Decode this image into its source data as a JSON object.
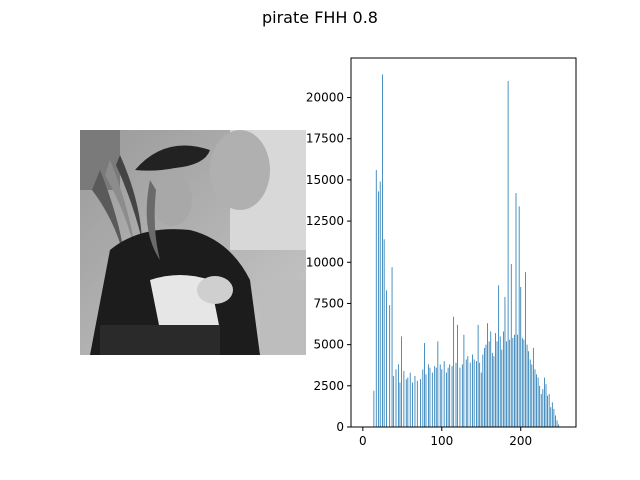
{
  "figure": {
    "suptitle": "pirate FHH 0.8"
  },
  "image_panel": {
    "description_icon": "grayscale-photo-icon"
  },
  "chart_data": {
    "type": "bar",
    "title": "",
    "xlabel": "",
    "ylabel": "",
    "xlim": [
      -15,
      270
    ],
    "ylim": [
      0,
      22400
    ],
    "xticks": [
      0,
      100,
      200
    ],
    "yticks": [
      0,
      2500,
      5000,
      7500,
      10000,
      12500,
      15000,
      17500,
      20000
    ],
    "bar_color": "#1f77b4",
    "bins": [
      [
        14,
        2200
      ],
      [
        17,
        15600
      ],
      [
        20,
        14300
      ],
      [
        22,
        14900
      ],
      [
        25,
        21400
      ],
      [
        27,
        11400
      ],
      [
        30,
        8300
      ],
      [
        34,
        7400
      ],
      [
        37,
        9700
      ],
      [
        39,
        3100
      ],
      [
        42,
        3500
      ],
      [
        45,
        3800
      ],
      [
        47,
        2700
      ],
      [
        49,
        5500
      ],
      [
        52,
        3400
      ],
      [
        55,
        2900
      ],
      [
        57,
        3000
      ],
      [
        60,
        3300
      ],
      [
        63,
        2700
      ],
      [
        66,
        3100
      ],
      [
        69,
        2800
      ],
      [
        73,
        2900
      ],
      [
        76,
        3500
      ],
      [
        78,
        5100
      ],
      [
        80,
        3200
      ],
      [
        83,
        3800
      ],
      [
        85,
        3600
      ],
      [
        88,
        3300
      ],
      [
        91,
        3700
      ],
      [
        93,
        3600
      ],
      [
        95,
        5200
      ],
      [
        98,
        3800
      ],
      [
        100,
        3500
      ],
      [
        103,
        4000
      ],
      [
        106,
        3300
      ],
      [
        108,
        3600
      ],
      [
        110,
        3800
      ],
      [
        113,
        3700
      ],
      [
        115,
        6700
      ],
      [
        118,
        3900
      ],
      [
        120,
        6200
      ],
      [
        123,
        3600
      ],
      [
        126,
        3800
      ],
      [
        128,
        5600
      ],
      [
        131,
        4100
      ],
      [
        133,
        4300
      ],
      [
        136,
        3900
      ],
      [
        139,
        4400
      ],
      [
        141,
        4100
      ],
      [
        144,
        4000
      ],
      [
        146,
        6200
      ],
      [
        148,
        3900
      ],
      [
        150,
        3300
      ],
      [
        152,
        4400
      ],
      [
        154,
        4800
      ],
      [
        156,
        5000
      ],
      [
        158,
        6300
      ],
      [
        160,
        5200
      ],
      [
        162,
        5800
      ],
      [
        164,
        4500
      ],
      [
        166,
        4300
      ],
      [
        168,
        5700
      ],
      [
        170,
        5200
      ],
      [
        172,
        8600
      ],
      [
        174,
        5500
      ],
      [
        176,
        4700
      ],
      [
        178,
        5800
      ],
      [
        180,
        7900
      ],
      [
        182,
        5200
      ],
      [
        184,
        21000
      ],
      [
        186,
        5300
      ],
      [
        188,
        9900
      ],
      [
        190,
        5400
      ],
      [
        192,
        5600
      ],
      [
        194,
        14200
      ],
      [
        196,
        5600
      ],
      [
        198,
        13400
      ],
      [
        200,
        8500
      ],
      [
        202,
        5400
      ],
      [
        204,
        5300
      ],
      [
        206,
        9400
      ],
      [
        208,
        5000
      ],
      [
        210,
        4600
      ],
      [
        212,
        4100
      ],
      [
        214,
        3800
      ],
      [
        216,
        4800
      ],
      [
        218,
        3500
      ],
      [
        220,
        3200
      ],
      [
        222,
        3000
      ],
      [
        224,
        2500
      ],
      [
        226,
        2000
      ],
      [
        228,
        2300
      ],
      [
        230,
        3000
      ],
      [
        232,
        2600
      ],
      [
        234,
        1900
      ],
      [
        236,
        2000
      ],
      [
        238,
        1200
      ],
      [
        240,
        1500
      ],
      [
        242,
        1100
      ],
      [
        244,
        700
      ],
      [
        246,
        400
      ],
      [
        248,
        150
      ]
    ]
  }
}
